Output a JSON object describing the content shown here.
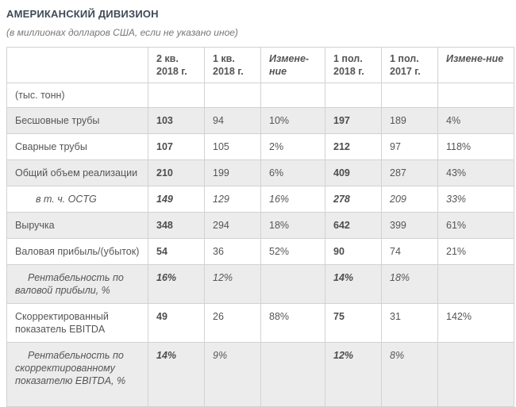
{
  "title": "АМЕРИКАНСКИЙ ДИВИЗИОН",
  "subtitle": "(в миллионах долларов США, если не указано иное)",
  "colors": {
    "title_text": "#3f4b57",
    "body_text": "#555555",
    "row_alt_background": "#ececec",
    "table_border": "#d2d2d2"
  },
  "table": {
    "columns": [
      {
        "label": "",
        "italic": false
      },
      {
        "label": "2 кв. 2018 г.",
        "italic": false
      },
      {
        "label": "1 кв. 2018 г.",
        "italic": false
      },
      {
        "label": "Измене-ние",
        "italic": true
      },
      {
        "label": "1 пол. 2018 г.",
        "italic": false
      },
      {
        "label": "1 пол. 2017 г.",
        "italic": false
      },
      {
        "label": "Измене-ние",
        "italic": true
      }
    ],
    "rows": [
      {
        "label": "(тыс. тонн)",
        "values": [
          "",
          "",
          "",
          "",
          "",
          ""
        ],
        "italic": false,
        "indent": "none"
      },
      {
        "label": "Бесшовные трубы",
        "values": [
          "103",
          "94",
          "10%",
          "197",
          "189",
          "4%"
        ],
        "italic": false,
        "indent": "none"
      },
      {
        "label": "Сварные трубы",
        "values": [
          "107",
          "105",
          "2%",
          "212",
          "97",
          "118%"
        ],
        "italic": false,
        "indent": "none"
      },
      {
        "label": "Общий объем реализации",
        "values": [
          "210",
          "199",
          "6%",
          "409",
          "287",
          "43%"
        ],
        "italic": false,
        "indent": "none"
      },
      {
        "label": "в т. ч. OCTG",
        "values": [
          "149",
          "129",
          "16%",
          "278",
          "209",
          "33%"
        ],
        "italic": true,
        "indent": "wide"
      },
      {
        "label": "Выручка",
        "values": [
          "348",
          "294",
          "18%",
          "642",
          "399",
          "61%"
        ],
        "italic": false,
        "indent": "none"
      },
      {
        "label": "Валовая прибыль/(убыток)",
        "values": [
          "54",
          "36",
          "52%",
          "90",
          "74",
          "21%"
        ],
        "italic": false,
        "indent": "none"
      },
      {
        "label": "Рентабельность по валовой прибыли, %",
        "values": [
          "16%",
          "12%",
          "",
          "14%",
          "18%",
          ""
        ],
        "italic": true,
        "indent": "normal"
      },
      {
        "label": "Скорректированный показатель EBITDA",
        "values": [
          "49",
          "26",
          "88%",
          "75",
          "31",
          "142%"
        ],
        "italic": false,
        "indent": "none"
      },
      {
        "label": "Рентабельность по скорректированному показателю EBITDA, %",
        "values": [
          "14%",
          "9%",
          "",
          "12%",
          "8%",
          ""
        ],
        "italic": true,
        "indent": "normal"
      }
    ]
  }
}
